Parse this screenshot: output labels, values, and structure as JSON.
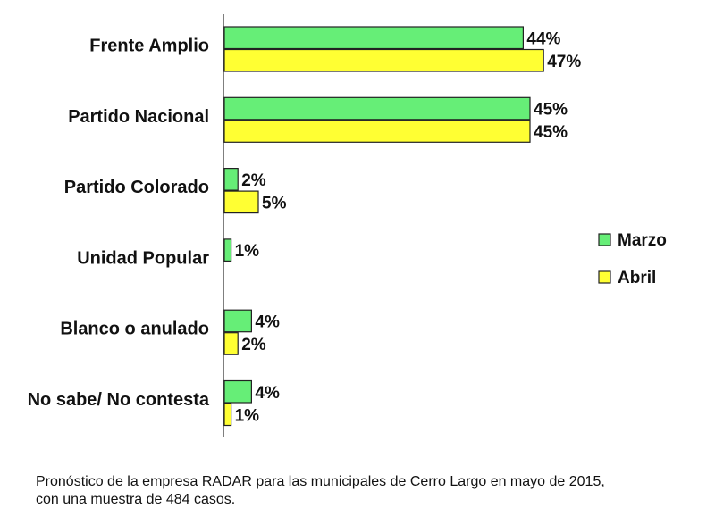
{
  "chart_data": {
    "type": "bar",
    "orientation": "horizontal",
    "categories": [
      "Frente Amplio",
      "Partido Nacional",
      "Partido Colorado",
      "Unidad Popular",
      "Blanco o anulado",
      "No sabe/ No contesta"
    ],
    "series": [
      {
        "name": "Marzo",
        "values": [
          44,
          45,
          2,
          1,
          4,
          4
        ],
        "labels": [
          "44%",
          "45%",
          "2%",
          "1%",
          "4%",
          "4%"
        ],
        "color": "#66ee77"
      },
      {
        "name": "Abril",
        "values": [
          47,
          45,
          5,
          null,
          2,
          1
        ],
        "labels": [
          "47%",
          "45%",
          "5%",
          "",
          "2%",
          "1%"
        ],
        "color": "#ffff33"
      }
    ],
    "xlim": [
      0,
      100
    ],
    "grid": false,
    "legend": "right"
  },
  "caption": {
    "line1": "Pronóstico de la empresa RADAR para las municipales de Cerro Largo en mayo de 2015,",
    "line2": "con una muestra de 484 casos."
  }
}
